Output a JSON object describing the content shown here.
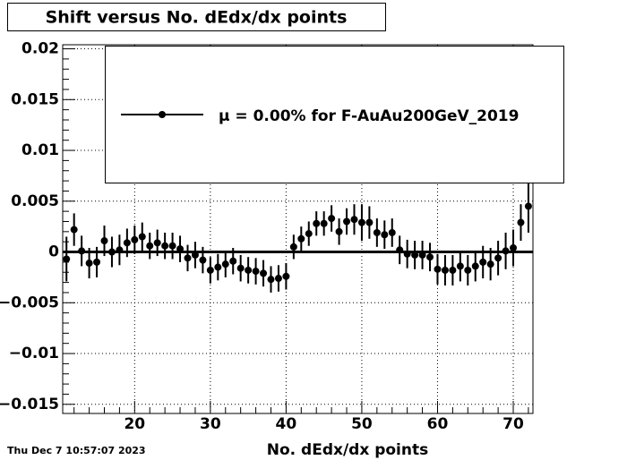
{
  "chart_data": {
    "type": "scatter",
    "title": "Shift versus No. dEdx/dx points",
    "x_label": "No. dEdx/dx points",
    "timestamp": "Thu Dec  7 10:57:07 2023",
    "x": [
      11,
      12,
      13,
      14,
      15,
      16,
      17,
      18,
      19,
      20,
      21,
      22,
      23,
      24,
      25,
      26,
      27,
      28,
      29,
      30,
      31,
      32,
      33,
      34,
      35,
      36,
      37,
      38,
      39,
      40,
      41,
      42,
      43,
      44,
      45,
      46,
      47,
      48,
      49,
      50,
      51,
      52,
      53,
      54,
      55,
      56,
      57,
      58,
      59,
      60,
      61,
      62,
      63,
      64,
      65,
      66,
      67,
      68,
      69,
      70,
      71,
      72
    ],
    "series": [
      {
        "name": "μ =  0.00% for F-AuAu200GeV_2019",
        "color": "#000000",
        "values": [
          -0.0007,
          0.0022,
          0.0001,
          -0.0011,
          -0.001,
          0.0011,
          0.0,
          0.0002,
          0.0009,
          0.0012,
          0.0015,
          0.0006,
          0.0009,
          0.0006,
          0.0006,
          0.0003,
          -0.0006,
          -0.0003,
          -0.0008,
          -0.0018,
          -0.0015,
          -0.0012,
          -0.0009,
          -0.0016,
          -0.0018,
          -0.0019,
          -0.0021,
          -0.0027,
          -0.0026,
          -0.0024,
          0.0005,
          0.0013,
          0.0018,
          0.0028,
          0.0028,
          0.0033,
          0.002,
          0.003,
          0.0032,
          0.0029,
          0.0029,
          0.0019,
          0.0017,
          0.0019,
          0.0002,
          -0.0002,
          -0.0003,
          -0.0003,
          -0.0005,
          -0.0017,
          -0.0018,
          -0.0018,
          -0.0014,
          -0.0018,
          -0.0014,
          -0.001,
          -0.0012,
          -0.0006,
          0.0001,
          0.0004,
          0.0029,
          0.0045
        ],
        "errors": [
          0.0022,
          0.0016,
          0.0015,
          0.0015,
          0.0015,
          0.0015,
          0.0015,
          0.0015,
          0.0014,
          0.0014,
          0.0014,
          0.0013,
          0.0013,
          0.0013,
          0.0013,
          0.0013,
          0.0013,
          0.0013,
          0.0013,
          0.0013,
          0.0013,
          0.0013,
          0.0013,
          0.0013,
          0.0013,
          0.0013,
          0.0013,
          0.0013,
          0.0013,
          0.0013,
          0.0012,
          0.0012,
          0.0012,
          0.0012,
          0.0012,
          0.0013,
          0.0013,
          0.0013,
          0.0015,
          0.0018,
          0.0016,
          0.0014,
          0.0014,
          0.0014,
          0.0014,
          0.0014,
          0.0014,
          0.0014,
          0.0014,
          0.0015,
          0.0015,
          0.0015,
          0.0015,
          0.0015,
          0.0015,
          0.0016,
          0.0016,
          0.0017,
          0.0018,
          0.0018,
          0.0018,
          0.0026
        ]
      }
    ],
    "fit_value": 0,
    "xlim": [
      10.5,
      72.6
    ],
    "ylim": [
      -0.0159,
      0.0204
    ],
    "xticks": [
      20,
      30,
      40,
      50,
      60,
      70
    ],
    "yticks": [
      0.02,
      0.015,
      0.01,
      0.005,
      0,
      {
        "value": -0.005,
        "label": "−0.005"
      },
      {
        "value": -0.01,
        "label": "−0.01"
      },
      {
        "value": -0.015,
        "label": "−0.015"
      }
    ],
    "grid": true
  }
}
